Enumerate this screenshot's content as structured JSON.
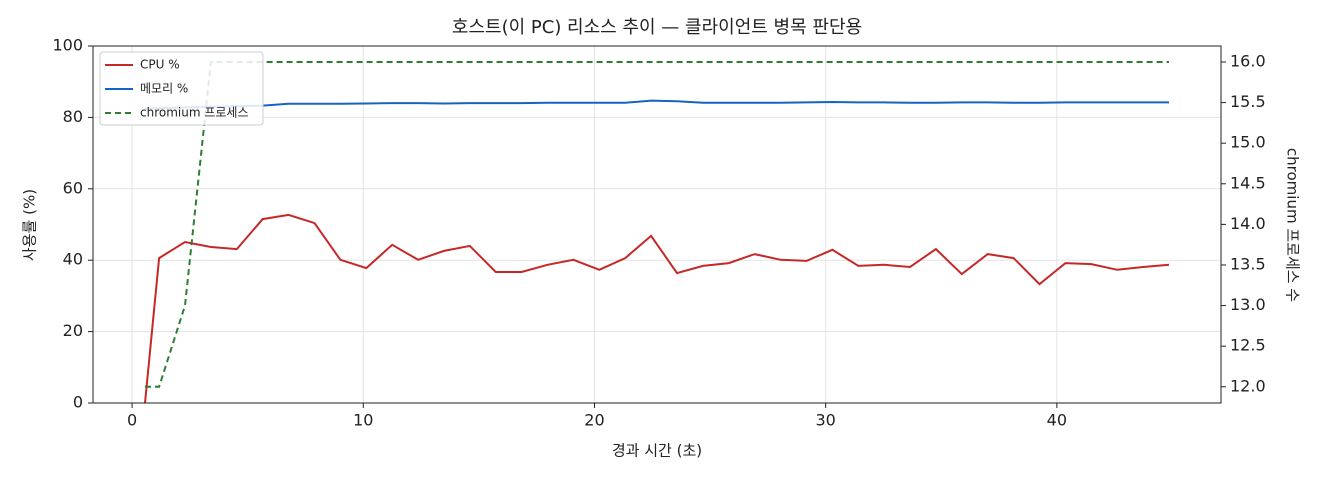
{
  "chart_data": {
    "type": "line",
    "title": "호스트(이 PC) 리소스 추이 — 클라이언트 병목 판단용",
    "x_label": "경과 시간 (초)",
    "y_label": "사용률 (%)",
    "y2_label": "chromium 프로세스 수",
    "x": [
      0.56,
      1.17,
      2.29,
      3.41,
      4.53,
      5.65,
      6.77,
      7.89,
      9.01,
      10.13,
      11.25,
      12.37,
      13.49,
      14.61,
      15.73,
      16.85,
      17.97,
      19.09,
      20.21,
      21.33,
      22.45,
      23.57,
      24.69,
      25.81,
      26.93,
      28.05,
      29.17,
      30.29,
      31.41,
      32.53,
      33.65,
      34.77,
      35.89,
      37.01,
      38.13,
      39.25,
      40.37,
      41.49,
      42.61,
      43.73,
      44.85
    ],
    "series": [
      {
        "name": "CPU %",
        "color": "#c62828",
        "axis": "y",
        "linestyle": "solid",
        "values": [
          0,
          40.6,
          45.1,
          43.7,
          43.1,
          51.5,
          52.7,
          50.4,
          40.1,
          37.8,
          44.3,
          40.1,
          42.6,
          44.0,
          36.7,
          36.7,
          38.7,
          40.1,
          37.3,
          40.6,
          46.8,
          36.4,
          38.4,
          39.2,
          41.7,
          40.1,
          39.8,
          42.9,
          38.4,
          38.7,
          38.1,
          43.1,
          36.1,
          41.7,
          40.6,
          33.3,
          39.2,
          38.9,
          37.3,
          38.1,
          38.7
        ]
      },
      {
        "name": "메모리 %",
        "color": "#1565c0",
        "axis": "y",
        "linestyle": "solid",
        "values": [
          82.5,
          82.6,
          82.8,
          83.0,
          83.1,
          83.3,
          83.8,
          83.8,
          83.8,
          83.9,
          84.0,
          84.0,
          83.9,
          84.0,
          84.0,
          84.0,
          84.1,
          84.1,
          84.1,
          84.1,
          84.7,
          84.5,
          84.1,
          84.1,
          84.1,
          84.1,
          84.2,
          84.3,
          84.2,
          84.2,
          84.1,
          84.1,
          84.2,
          84.2,
          84.1,
          84.1,
          84.2,
          84.2,
          84.2,
          84.2,
          84.2
        ]
      },
      {
        "name": "chromium 프로세스",
        "color": "#2e7d32",
        "axis": "y2",
        "linestyle": "dashed",
        "values": [
          12,
          12,
          13,
          16,
          16,
          16,
          16,
          16,
          16,
          16,
          16,
          16,
          16,
          16,
          16,
          16,
          16,
          16,
          16,
          16,
          16,
          16,
          16,
          16,
          16,
          16,
          16,
          16,
          16,
          16,
          16,
          16,
          16,
          16,
          16,
          16,
          16,
          16,
          16,
          16,
          16
        ]
      }
    ],
    "xlim": [
      -1.69,
      47.1
    ],
    "xticks": [
      0,
      10,
      20,
      30,
      40
    ],
    "ylim": [
      0,
      100
    ],
    "yticks": [
      0,
      20,
      40,
      60,
      80,
      100
    ],
    "y2lim": [
      11.8,
      16.197
    ],
    "y2ticks": [
      {
        "value": 12,
        "label": "12.0"
      },
      {
        "value": 12.5,
        "label": "12.5"
      },
      {
        "value": 13,
        "label": "13.0"
      },
      {
        "value": 13.5,
        "label": "13.5"
      },
      {
        "value": 14,
        "label": "14.0"
      },
      {
        "value": 14.5,
        "label": "14.5"
      },
      {
        "value": 15,
        "label": "15.0"
      },
      {
        "value": 15.5,
        "label": "15.5"
      },
      {
        "value": 16,
        "label": "16.0"
      }
    ],
    "grid": true,
    "legend_position": "upper-left"
  }
}
